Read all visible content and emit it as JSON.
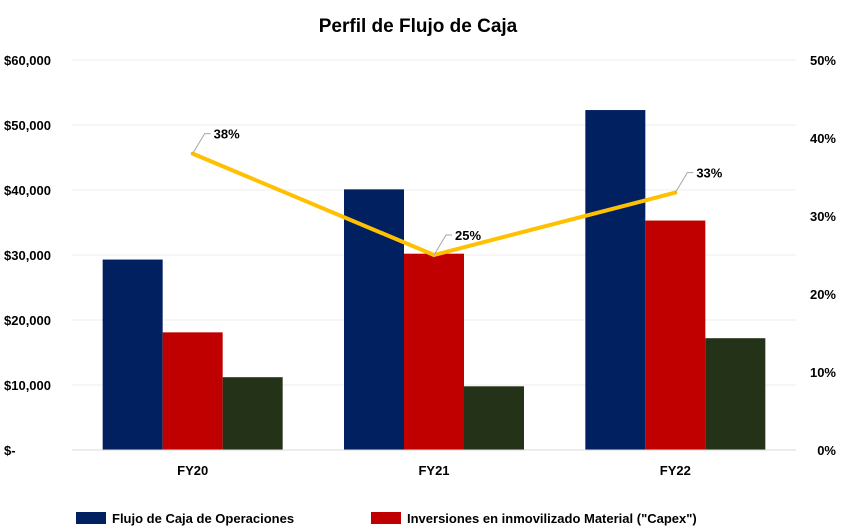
{
  "chart_data": {
    "type": "bar",
    "title": "Perfil de Flujo de Caja",
    "categories": [
      "FY20",
      "FY21",
      "FY22"
    ],
    "series": [
      {
        "name": "Flujo de Caja de Operaciones",
        "values": [
          29300,
          40100,
          52300
        ],
        "color": "#002060",
        "axis": "left"
      },
      {
        "name": "Inversiones en inmovilizado Material (\"Capex\")",
        "values": [
          18100,
          30200,
          35300
        ],
        "color": "#C00000",
        "axis": "left"
      },
      {
        "values": [
          11200,
          9800,
          17200
        ],
        "color": "#243318",
        "axis": "left"
      },
      {
        "values": [
          0.38,
          0.25,
          0.33
        ],
        "color": "#FFC000",
        "axis": "right",
        "type": "line",
        "labels": [
          "38%",
          "25%",
          "33%"
        ]
      }
    ],
    "y_left": {
      "ylim": [
        0,
        60000
      ],
      "ticks": [
        0,
        10000,
        20000,
        30000,
        40000,
        50000,
        60000
      ],
      "tick_labels": [
        "$-",
        "$10,000",
        "$20,000",
        "$30,000",
        "$40,000",
        "$50,000",
        "$60,000"
      ]
    },
    "y_right": {
      "ylim": [
        0,
        0.5
      ],
      "ticks": [
        0,
        0.1,
        0.2,
        0.3,
        0.4,
        0.5
      ],
      "tick_labels": [
        "0%",
        "10%",
        "20%",
        "30%",
        "40%",
        "50%"
      ]
    },
    "grid": true,
    "legend": {
      "position": "bottom-left"
    }
  }
}
